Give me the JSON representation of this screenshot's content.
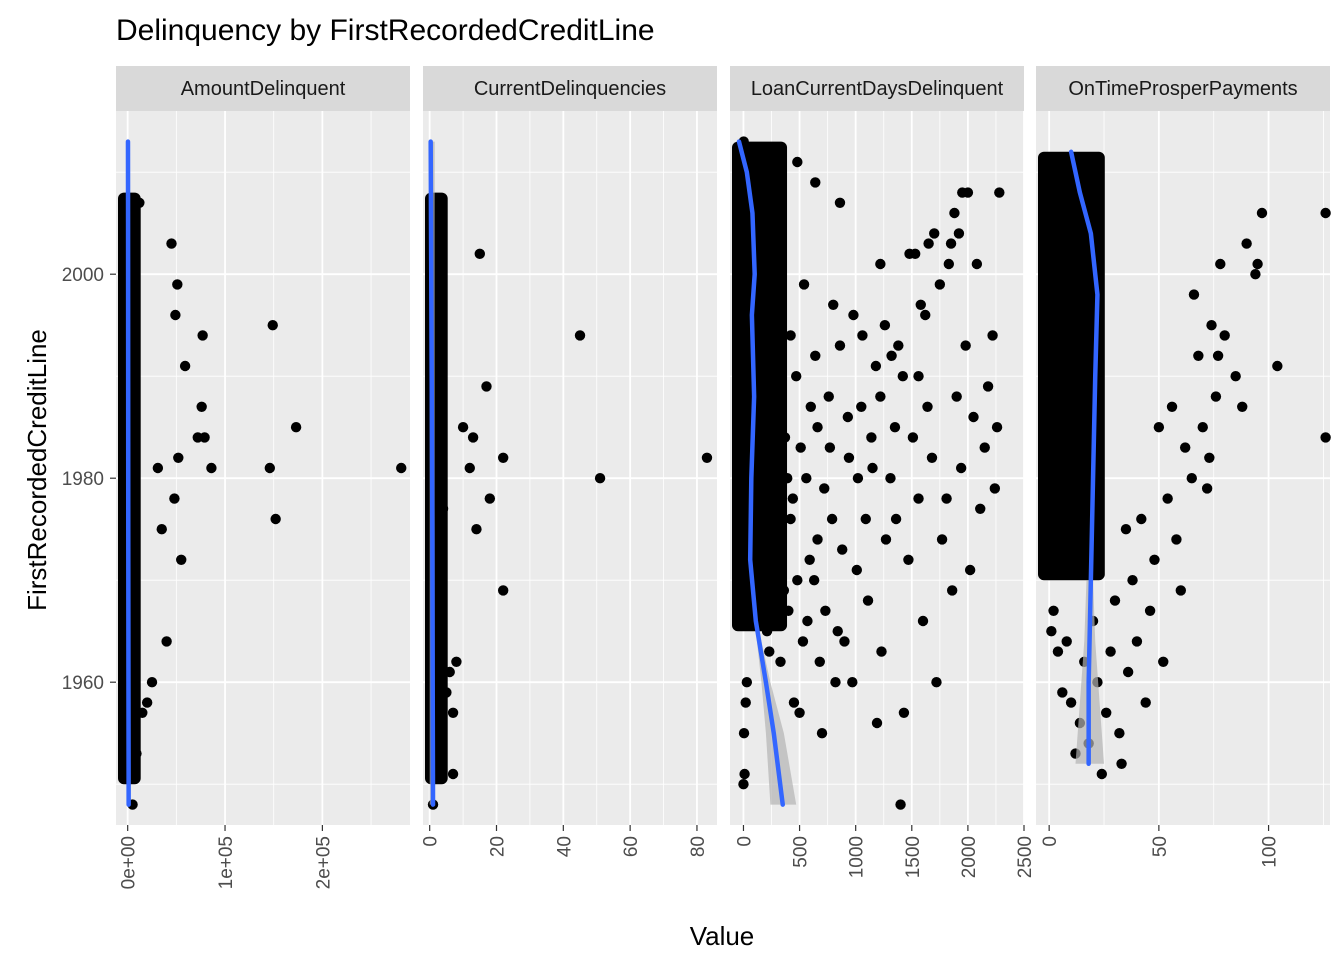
{
  "chart_data": {
    "type": "scatter",
    "title": "Delinquency by FirstRecordedCreditLine",
    "xlabel": "Value",
    "ylabel": "FirstRecordedCreditLine",
    "ylim": [
      1946,
      2016
    ],
    "yticks": [
      1960,
      1980,
      2000
    ],
    "ytick_labels": [
      "1960",
      "1980",
      "2000"
    ],
    "grid": true,
    "colors": {
      "panel": "#ebebeb",
      "strip": "#d9d9d9",
      "grid": "#ffffff",
      "points": "#000000",
      "smooth": "#3366ff",
      "band": "#b3b3b3"
    },
    "facets": [
      {
        "label": "AmountDelinquent",
        "xlim": [
          -12000,
          290000
        ],
        "xticks": [
          0,
          100000,
          200000
        ],
        "xtick_labels": [
          "0e+00",
          "1e+05",
          "2e+05"
        ],
        "points": [
          [
            281000,
            1981
          ],
          [
            173000,
            1985
          ],
          [
            152000,
            1976
          ],
          [
            149000,
            1995
          ],
          [
            146000,
            1981
          ],
          [
            86000,
            1981
          ],
          [
            79000,
            1984
          ],
          [
            77000,
            1994
          ],
          [
            76000,
            1987
          ],
          [
            72000,
            1984
          ],
          [
            59000,
            1991
          ],
          [
            55000,
            1972
          ],
          [
            52000,
            1982
          ],
          [
            51000,
            1999
          ],
          [
            49000,
            1996
          ],
          [
            48000,
            1978
          ],
          [
            45000,
            2003
          ],
          [
            40000,
            1964
          ],
          [
            35000,
            1975
          ],
          [
            31000,
            1981
          ],
          [
            25000,
            1960
          ],
          [
            20000,
            1958
          ],
          [
            15000,
            1957
          ],
          [
            12000,
            2007
          ],
          [
            9000,
            1953
          ],
          [
            5000,
            1948
          ]
        ],
        "smooth": [
          [
            1000,
            1948
          ],
          [
            800,
            1960
          ],
          [
            600,
            1975
          ],
          [
            500,
            1990
          ],
          [
            400,
            2005
          ],
          [
            300,
            2013
          ]
        ],
        "band": {
          "y": [
            1948,
            2013
          ],
          "lo": [
            0,
            0
          ],
          "hi": [
            1500,
            1500
          ]
        }
      },
      {
        "label": "CurrentDelinquencies",
        "xlim": [
          -2,
          86
        ],
        "xticks": [
          0,
          20,
          40,
          60,
          80
        ],
        "xtick_labels": [
          "0",
          "20",
          "40",
          "60",
          "80"
        ],
        "points": [
          [
            83,
            1982
          ],
          [
            51,
            1980
          ],
          [
            45,
            1994
          ],
          [
            22,
            1969
          ],
          [
            22,
            1982
          ],
          [
            18,
            1978
          ],
          [
            17,
            1989
          ],
          [
            15,
            2002
          ],
          [
            14,
            1975
          ],
          [
            13,
            1984
          ],
          [
            12,
            1981
          ],
          [
            10,
            1985
          ],
          [
            8,
            1962
          ],
          [
            7,
            1957
          ],
          [
            7,
            1951
          ],
          [
            6,
            1961
          ],
          [
            5,
            1959
          ],
          [
            4,
            1977
          ],
          [
            3,
            2007
          ],
          [
            2,
            1953
          ],
          [
            1,
            1948
          ]
        ],
        "smooth": [
          [
            1,
            1948
          ],
          [
            0.9,
            1960
          ],
          [
            0.8,
            1975
          ],
          [
            0.6,
            1990
          ],
          [
            0.4,
            2005
          ],
          [
            0.3,
            2013
          ]
        ],
        "band": {
          "y": [
            1948,
            2013
          ],
          "lo": [
            0,
            0
          ],
          "hi": [
            1.5,
            1.5
          ]
        }
      },
      {
        "label": "LoanCurrentDaysDelinquent",
        "xlim": [
          -120,
          2500
        ],
        "xticks": [
          0,
          500,
          1000,
          1500,
          2000,
          2500
        ],
        "xtick_labels": [
          "0",
          "500",
          "1000",
          "1500",
          "2000",
          "2500"
        ],
        "points": [
          [
            2000,
            2008
          ],
          [
            1950,
            2008
          ],
          [
            1920,
            2004
          ],
          [
            1880,
            2006
          ],
          [
            1830,
            2001
          ],
          [
            1750,
            1999
          ],
          [
            1700,
            2004
          ],
          [
            1650,
            2003
          ],
          [
            1620,
            1996
          ],
          [
            1580,
            1997
          ],
          [
            1530,
            2002
          ],
          [
            1480,
            2002
          ],
          [
            1420,
            1990
          ],
          [
            1380,
            1993
          ],
          [
            1350,
            1985
          ],
          [
            1310,
            1980
          ],
          [
            1260,
            1995
          ],
          [
            1220,
            1988
          ],
          [
            1180,
            1991
          ],
          [
            1140,
            1984
          ],
          [
            1090,
            1976
          ],
          [
            1050,
            1987
          ],
          [
            1010,
            1971
          ],
          [
            980,
            1996
          ],
          [
            940,
            1982
          ],
          [
            900,
            1964
          ],
          [
            860,
            1993
          ],
          [
            820,
            1960
          ],
          [
            790,
            1976
          ],
          [
            760,
            1988
          ],
          [
            730,
            1967
          ],
          [
            700,
            1955
          ],
          [
            660,
            1985
          ],
          [
            630,
            1970
          ],
          [
            590,
            1972
          ],
          [
            560,
            1980
          ],
          [
            530,
            1964
          ],
          [
            500,
            1957
          ],
          [
            470,
            1990
          ],
          [
            440,
            1978
          ],
          [
            400,
            1967
          ],
          [
            370,
            1984
          ],
          [
            330,
            1962
          ],
          [
            300,
            1996
          ],
          [
            270,
            1971
          ],
          [
            240,
            1983
          ],
          [
            210,
            1965
          ],
          [
            180,
            1991
          ],
          [
            150,
            1969
          ],
          [
            120,
            1979
          ],
          [
            90,
            2004
          ],
          [
            60,
            1975
          ],
          [
            30,
            1960
          ],
          [
            10,
            1951
          ],
          [
            2280,
            2008
          ],
          [
            2260,
            1985
          ],
          [
            2240,
            1979
          ],
          [
            2220,
            1994
          ],
          [
            2180,
            1989
          ],
          [
            2150,
            1983
          ],
          [
            2110,
            1977
          ],
          [
            2080,
            2001
          ],
          [
            2050,
            1986
          ],
          [
            2020,
            1971
          ],
          [
            1980,
            1993
          ],
          [
            1940,
            1981
          ],
          [
            1900,
            1988
          ],
          [
            1860,
            1969
          ],
          [
            1810,
            1978
          ],
          [
            1770,
            1974
          ],
          [
            1720,
            1960
          ],
          [
            1680,
            1982
          ],
          [
            1640,
            1987
          ],
          [
            1600,
            1966
          ],
          [
            1560,
            1978
          ],
          [
            1510,
            1984
          ],
          [
            1470,
            1972
          ],
          [
            1430,
            1957
          ],
          [
            1400,
            1948
          ],
          [
            1360,
            1976
          ],
          [
            1320,
            1992
          ],
          [
            1270,
            1974
          ],
          [
            1230,
            1963
          ],
          [
            1190,
            1956
          ],
          [
            1150,
            1981
          ],
          [
            1110,
            1968
          ],
          [
            1060,
            1994
          ],
          [
            1020,
            1980
          ],
          [
            970,
            1960
          ],
          [
            930,
            1986
          ],
          [
            880,
            1973
          ],
          [
            840,
            1965
          ],
          [
            800,
            1997
          ],
          [
            770,
            1983
          ],
          [
            720,
            1979
          ],
          [
            680,
            1962
          ],
          [
            640,
            1992
          ],
          [
            600,
            1987
          ],
          [
            570,
            1966
          ],
          [
            540,
            1999
          ],
          [
            510,
            1983
          ],
          [
            480,
            1970
          ],
          [
            450,
            1958
          ],
          [
            420,
            1994
          ],
          [
            390,
            1980
          ],
          [
            360,
            1969
          ],
          [
            320,
            1986
          ],
          [
            290,
            1975
          ],
          [
            260,
            2007
          ],
          [
            230,
            1963
          ],
          [
            200,
            1978
          ],
          [
            170,
            1989
          ],
          [
            140,
            1973
          ],
          [
            110,
            1983
          ],
          [
            80,
            1968
          ],
          [
            50,
            1992
          ],
          [
            20,
            1958
          ],
          [
            1850,
            2003
          ],
          [
            1560,
            1990
          ],
          [
            1220,
            2001
          ],
          [
            860,
            2007
          ],
          [
            640,
            2009
          ],
          [
            480,
            2011
          ],
          [
            330,
            2010
          ],
          [
            2,
            2013
          ],
          [
            5,
            1955
          ],
          [
            0,
            1950
          ],
          [
            420,
            1976
          ],
          [
            660,
            1974
          ],
          [
            300,
            1981
          ]
        ],
        "smooth": [
          [
            -40,
            2013
          ],
          [
            30,
            2010
          ],
          [
            80,
            2006
          ],
          [
            100,
            2000
          ],
          [
            75,
            1996
          ],
          [
            95,
            1988
          ],
          [
            70,
            1980
          ],
          [
            60,
            1972
          ],
          [
            110,
            1966
          ],
          [
            200,
            1960
          ],
          [
            270,
            1955
          ],
          [
            350,
            1948
          ]
        ],
        "band": {
          "y": [
            1948,
            1955,
            1960,
            1966
          ],
          "lo": [
            240,
            200,
            160,
            100
          ],
          "hi": [
            470,
            360,
            240,
            120
          ]
        }
      },
      {
        "label": "OnTimeProsperPayments",
        "xlim": [
          -6,
          128
        ],
        "xticks": [
          0,
          50,
          100
        ],
        "xtick_labels": [
          "0",
          "50",
          "100"
        ],
        "points": [
          [
            126,
            2006
          ],
          [
            126,
            1984
          ],
          [
            104,
            1991
          ],
          [
            97,
            2006
          ],
          [
            95,
            2001
          ],
          [
            94,
            2000
          ],
          [
            90,
            2003
          ],
          [
            88,
            1987
          ],
          [
            85,
            1990
          ],
          [
            80,
            1994
          ],
          [
            78,
            2001
          ],
          [
            77,
            1992
          ],
          [
            76,
            1988
          ],
          [
            74,
            1995
          ],
          [
            73,
            1982
          ],
          [
            72,
            1979
          ],
          [
            70,
            1985
          ],
          [
            68,
            1992
          ],
          [
            66,
            1998
          ],
          [
            65,
            1980
          ],
          [
            62,
            1983
          ],
          [
            60,
            1969
          ],
          [
            58,
            1974
          ],
          [
            56,
            1987
          ],
          [
            54,
            1978
          ],
          [
            52,
            1962
          ],
          [
            50,
            1985
          ],
          [
            48,
            1972
          ],
          [
            46,
            1967
          ],
          [
            44,
            1958
          ],
          [
            42,
            1976
          ],
          [
            40,
            1964
          ],
          [
            38,
            1970
          ],
          [
            36,
            1961
          ],
          [
            35,
            1975
          ],
          [
            33,
            1952
          ],
          [
            32,
            1955
          ],
          [
            30,
            1968
          ],
          [
            28,
            1963
          ],
          [
            26,
            1957
          ],
          [
            24,
            1951
          ],
          [
            22,
            1960
          ],
          [
            20,
            1966
          ],
          [
            18,
            1954
          ],
          [
            16,
            1962
          ],
          [
            14,
            1956
          ],
          [
            12,
            1953
          ],
          [
            10,
            1958
          ],
          [
            8,
            1964
          ],
          [
            6,
            1959
          ],
          [
            4,
            1963
          ],
          [
            2,
            1967
          ],
          [
            1,
            1965
          ]
        ],
        "smooth": [
          [
            10,
            2012
          ],
          [
            14,
            2008
          ],
          [
            19,
            2004
          ],
          [
            22,
            1998
          ],
          [
            21,
            1990
          ],
          [
            20,
            1980
          ],
          [
            19,
            1970
          ],
          [
            18,
            1960
          ],
          [
            18,
            1952
          ]
        ],
        "band": {
          "y": [
            1952,
            1958,
            1964,
            1970
          ],
          "lo": [
            12,
            14,
            16,
            17
          ],
          "hi": [
            25,
            23,
            21,
            20
          ]
        }
      }
    ]
  }
}
